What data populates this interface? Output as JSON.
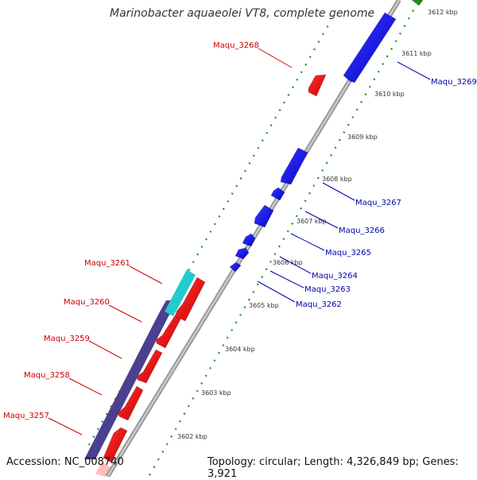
{
  "title": "Marinobacter aquaeolei VT8, complete genome",
  "footer": {
    "accession_label": "Accession: NC_008740",
    "summary": "Topology: circular; Length: 4,326,849 bp; Genes: 3,921"
  },
  "colors": {
    "forward_gene": "#0000ee",
    "reverse_gene": "#ee0000",
    "reverse_callout": "#cc0000",
    "forward_callout": "#0000aa",
    "cds_band": "#4b3f8f",
    "highlight_band": "#22cccc",
    "backbone": "#888888",
    "tick_dots": "#1f8f1f"
  },
  "scale_ticks": [
    "3602 kbp",
    "3603 kbp",
    "3604 kbp",
    "3605 kbp",
    "3606 kbp",
    "3607 kbp",
    "3608 kbp",
    "3609 kbp",
    "3610 kbp",
    "3611 kbp",
    "3612 kbp"
  ],
  "genes": {
    "forward": [
      "Maqu_3262",
      "Maqu_3263",
      "Maqu_3264",
      "Maqu_3265",
      "Maqu_3266",
      "Maqu_3267",
      "Maqu_3269"
    ],
    "reverse": [
      "Maqu_3257",
      "Maqu_3258",
      "Maqu_3259",
      "Maqu_3260",
      "Maqu_3261",
      "Maqu_3268"
    ]
  }
}
